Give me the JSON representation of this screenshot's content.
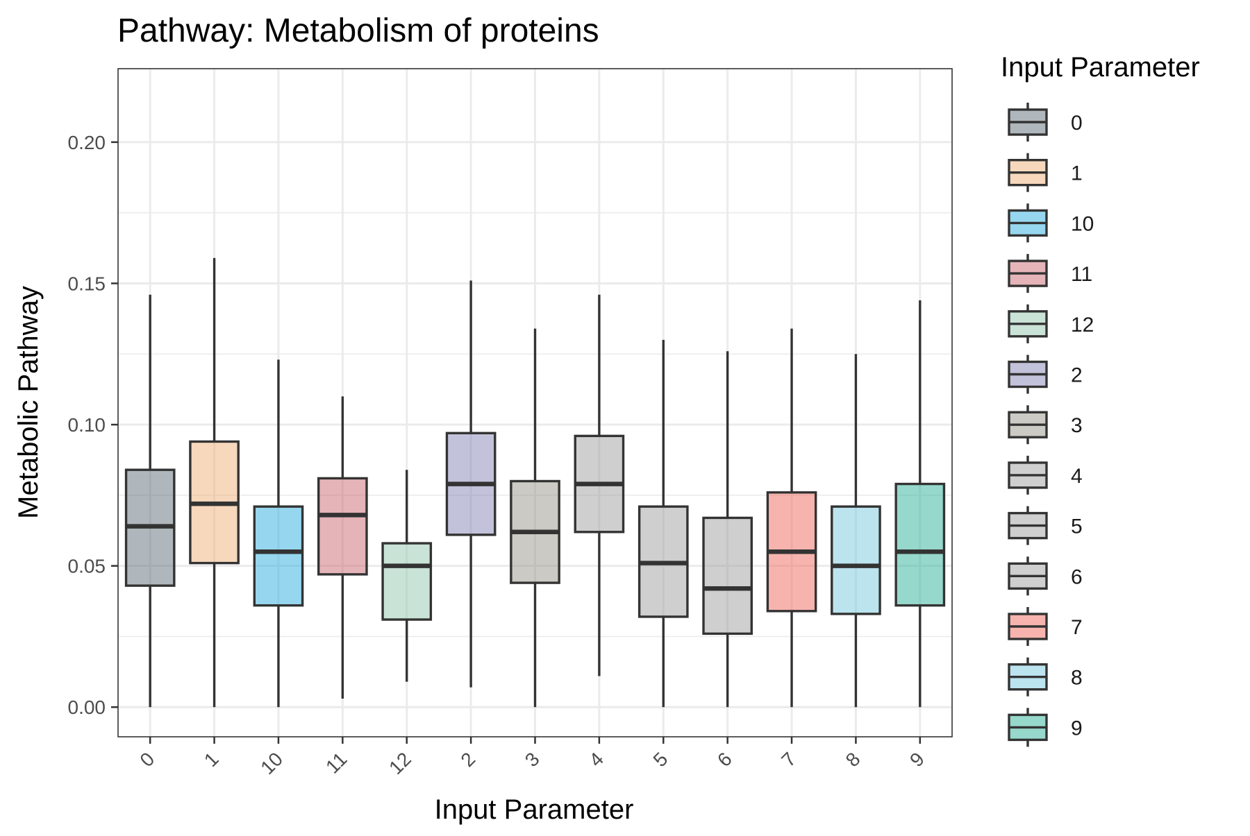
{
  "chart_data": {
    "type": "boxplot",
    "title": "Pathway: Metabolism of proteins",
    "xlabel": "Input Parameter",
    "ylabel": "Metabolic Pathway",
    "ylim": [
      -0.0105,
      0.226
    ],
    "yticks": [
      0.0,
      0.05,
      0.1,
      0.15,
      0.2
    ],
    "ytick_labels": [
      "0.00",
      "0.05",
      "0.10",
      "0.15",
      "0.20"
    ],
    "grid": true,
    "legend": {
      "title": "Input Parameter",
      "position": "right"
    },
    "categories": [
      "0",
      "1",
      "10",
      "11",
      "12",
      "2",
      "3",
      "4",
      "5",
      "6",
      "7",
      "8",
      "9"
    ],
    "boxes": [
      {
        "category": "0",
        "min": 0.0,
        "q1": 0.043,
        "median": 0.064,
        "q3": 0.084,
        "max": 0.146,
        "color": "#5f6f7a"
      },
      {
        "category": "1",
        "min": 0.0,
        "q1": 0.051,
        "median": 0.072,
        "q3": 0.094,
        "max": 0.159,
        "color": "#f0b17a"
      },
      {
        "category": "10",
        "min": 0.0,
        "q1": 0.036,
        "median": 0.055,
        "q3": 0.071,
        "max": 0.123,
        "color": "#2db0e0"
      },
      {
        "category": "11",
        "min": 0.003,
        "q1": 0.047,
        "median": 0.068,
        "q3": 0.081,
        "max": 0.11,
        "color": "#c96a73"
      },
      {
        "category": "12",
        "min": 0.009,
        "q1": 0.031,
        "median": 0.05,
        "q3": 0.058,
        "max": 0.084,
        "color": "#95c8b0"
      },
      {
        "category": "2",
        "min": 0.007,
        "q1": 0.061,
        "median": 0.079,
        "q3": 0.097,
        "max": 0.151,
        "color": "#8886b8"
      },
      {
        "category": "3",
        "min": 0.0,
        "q1": 0.044,
        "median": 0.062,
        "q3": 0.08,
        "max": 0.134,
        "color": "#9a958a"
      },
      {
        "category": "4",
        "min": 0.011,
        "q1": 0.062,
        "median": 0.079,
        "q3": 0.096,
        "max": 0.146,
        "color": "#a0a0a0"
      },
      {
        "category": "5",
        "min": 0.0,
        "q1": 0.032,
        "median": 0.051,
        "q3": 0.071,
        "max": 0.13,
        "color": "#a0a0a0"
      },
      {
        "category": "6",
        "min": 0.0,
        "q1": 0.026,
        "median": 0.042,
        "q3": 0.067,
        "max": 0.126,
        "color": "#a0a0a0"
      },
      {
        "category": "7",
        "min": 0.0,
        "q1": 0.034,
        "median": 0.055,
        "q3": 0.076,
        "max": 0.134,
        "color": "#ef6a5e"
      },
      {
        "category": "8",
        "min": 0.0,
        "q1": 0.033,
        "median": 0.05,
        "q3": 0.071,
        "max": 0.125,
        "color": "#79c9e0"
      },
      {
        "category": "9",
        "min": 0.0,
        "q1": 0.036,
        "median": 0.055,
        "q3": 0.079,
        "max": 0.144,
        "color": "#2fb29a"
      }
    ]
  }
}
